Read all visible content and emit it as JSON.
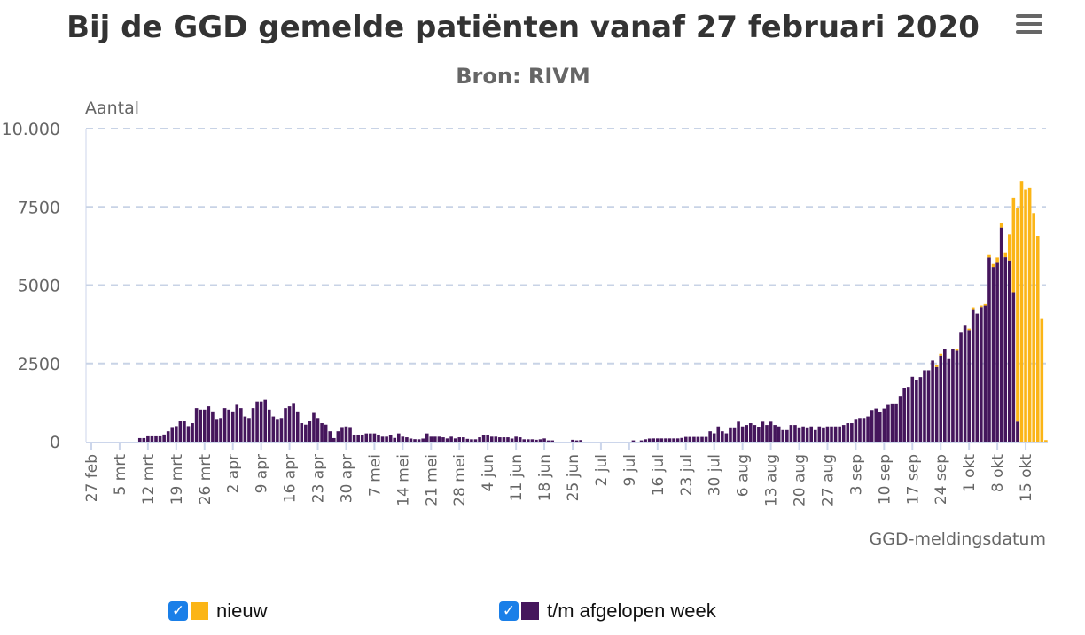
{
  "chart_data": {
    "type": "bar",
    "stacked": true,
    "title": "Bij de GGD gemelde patiënten vanaf 27 februari 2020",
    "subtitle": "Bron: RIVM",
    "ylabel": "Aantal",
    "xlabel": "GGD-meldingsdatum",
    "ylim": [
      0,
      10000
    ],
    "yticks": [
      0,
      2500,
      5000,
      7500,
      10000
    ],
    "ytick_labels": [
      "0",
      "2500",
      "5000",
      "7500",
      "10.000"
    ],
    "grid": true,
    "legend_position": "bottom",
    "x_tick_every_n_bars": 7,
    "x_tick_labels": [
      "27 feb",
      "5 mrt",
      "12 mrt",
      "19 mrt",
      "26 mrt",
      "2 apr",
      "9 apr",
      "16 apr",
      "23 apr",
      "30 apr",
      "7 mei",
      "14 mei",
      "21 mei",
      "28 mei",
      "4 jun",
      "11 jun",
      "18 jun",
      "25 jun",
      "2 jul",
      "9 jul",
      "16 jul",
      "23 jul",
      "30 jul",
      "6 aug",
      "13 aug",
      "20 aug",
      "27 aug",
      "3 sep",
      "10 sep",
      "17 sep",
      "24 sep",
      "1 okt",
      "8 okt",
      "15 okt"
    ],
    "series": [
      {
        "name": "t/m afgelopen week",
        "color": "#45165c",
        "values": [
          0,
          0,
          0,
          0,
          0,
          0,
          0,
          0,
          0,
          0,
          0,
          0,
          115,
          115,
          172,
          172,
          172,
          172,
          230,
          335,
          441,
          498,
          651,
          651,
          498,
          594,
          1073,
          1025,
          1025,
          1130,
          968,
          699,
          757,
          1073,
          1025,
          968,
          1178,
          1073,
          805,
          757,
          1073,
          1284,
          1284,
          1341,
          1025,
          805,
          699,
          757,
          1073,
          1130,
          1236,
          968,
          594,
          546,
          651,
          920,
          757,
          594,
          546,
          335,
          115,
          335,
          441,
          489,
          441,
          227,
          227,
          227,
          265,
          265,
          265,
          227,
          161,
          161,
          199,
          120,
          265,
          161,
          140,
          100,
          80,
          76,
          100,
          265,
          161,
          161,
          161,
          140,
          104,
          161,
          104,
          140,
          140,
          90,
          76,
          76,
          140,
          199,
          227,
          161,
          161,
          140,
          140,
          140,
          100,
          161,
          140,
          76,
          76,
          76,
          60,
          76,
          104,
          40,
          40,
          0,
          0,
          0,
          0,
          60,
          40,
          50,
          0,
          0,
          0,
          0,
          0,
          0,
          0,
          0,
          0,
          0,
          0,
          0,
          40,
          0,
          40,
          76,
          100,
          104,
          104,
          104,
          104,
          104,
          104,
          104,
          120,
          153,
          153,
          153,
          153,
          153,
          153,
          335,
          268,
          489,
          335,
          268,
          431,
          431,
          642,
          489,
          536,
          594,
          536,
          479,
          642,
          536,
          642,
          536,
          489,
          374,
          374,
          536,
          536,
          431,
          489,
          431,
          489,
          374,
          489,
          431,
          489,
          489,
          489,
          489,
          536,
          594,
          594,
          700,
          757,
          757,
          805,
          1013,
          1060,
          956,
          1060,
          1174,
          1222,
          1222,
          1440,
          1705,
          1752,
          2074,
          1960,
          2064,
          2282,
          2282,
          2595,
          2386,
          2755,
          2974,
          2642,
          2974,
          2907,
          3504,
          3703,
          3561,
          4233,
          4091,
          4300,
          4347,
          5881,
          5578,
          5739,
          6837,
          5890,
          5786,
          4773,
          644,
          0,
          0,
          0,
          0,
          0,
          0,
          0
        ]
      },
      {
        "name": "nieuw",
        "color": "#fbb516",
        "values_from_index": 193,
        "values": [
          0,
          0,
          0,
          0,
          0,
          0,
          0,
          0,
          0,
          0,
          0,
          0,
          0,
          0,
          0,
          0,
          57,
          57,
          0,
          0,
          0,
          57,
          0,
          0,
          47,
          57,
          0,
          47,
          47,
          104,
          95,
          142,
          152,
          152,
          833,
          3021,
          6828,
          8324,
          8059,
          8106,
          7301,
          6572,
          3920,
          50
        ]
      }
    ]
  },
  "legend": {
    "items": [
      {
        "label": "nieuw",
        "checked": true,
        "color": "#fbb516"
      },
      {
        "label": "t/m afgelopen week",
        "checked": true,
        "color": "#45165c"
      }
    ],
    "checkbox_color": "#1a7fe8"
  },
  "menu_icon": "hamburger-menu-icon"
}
